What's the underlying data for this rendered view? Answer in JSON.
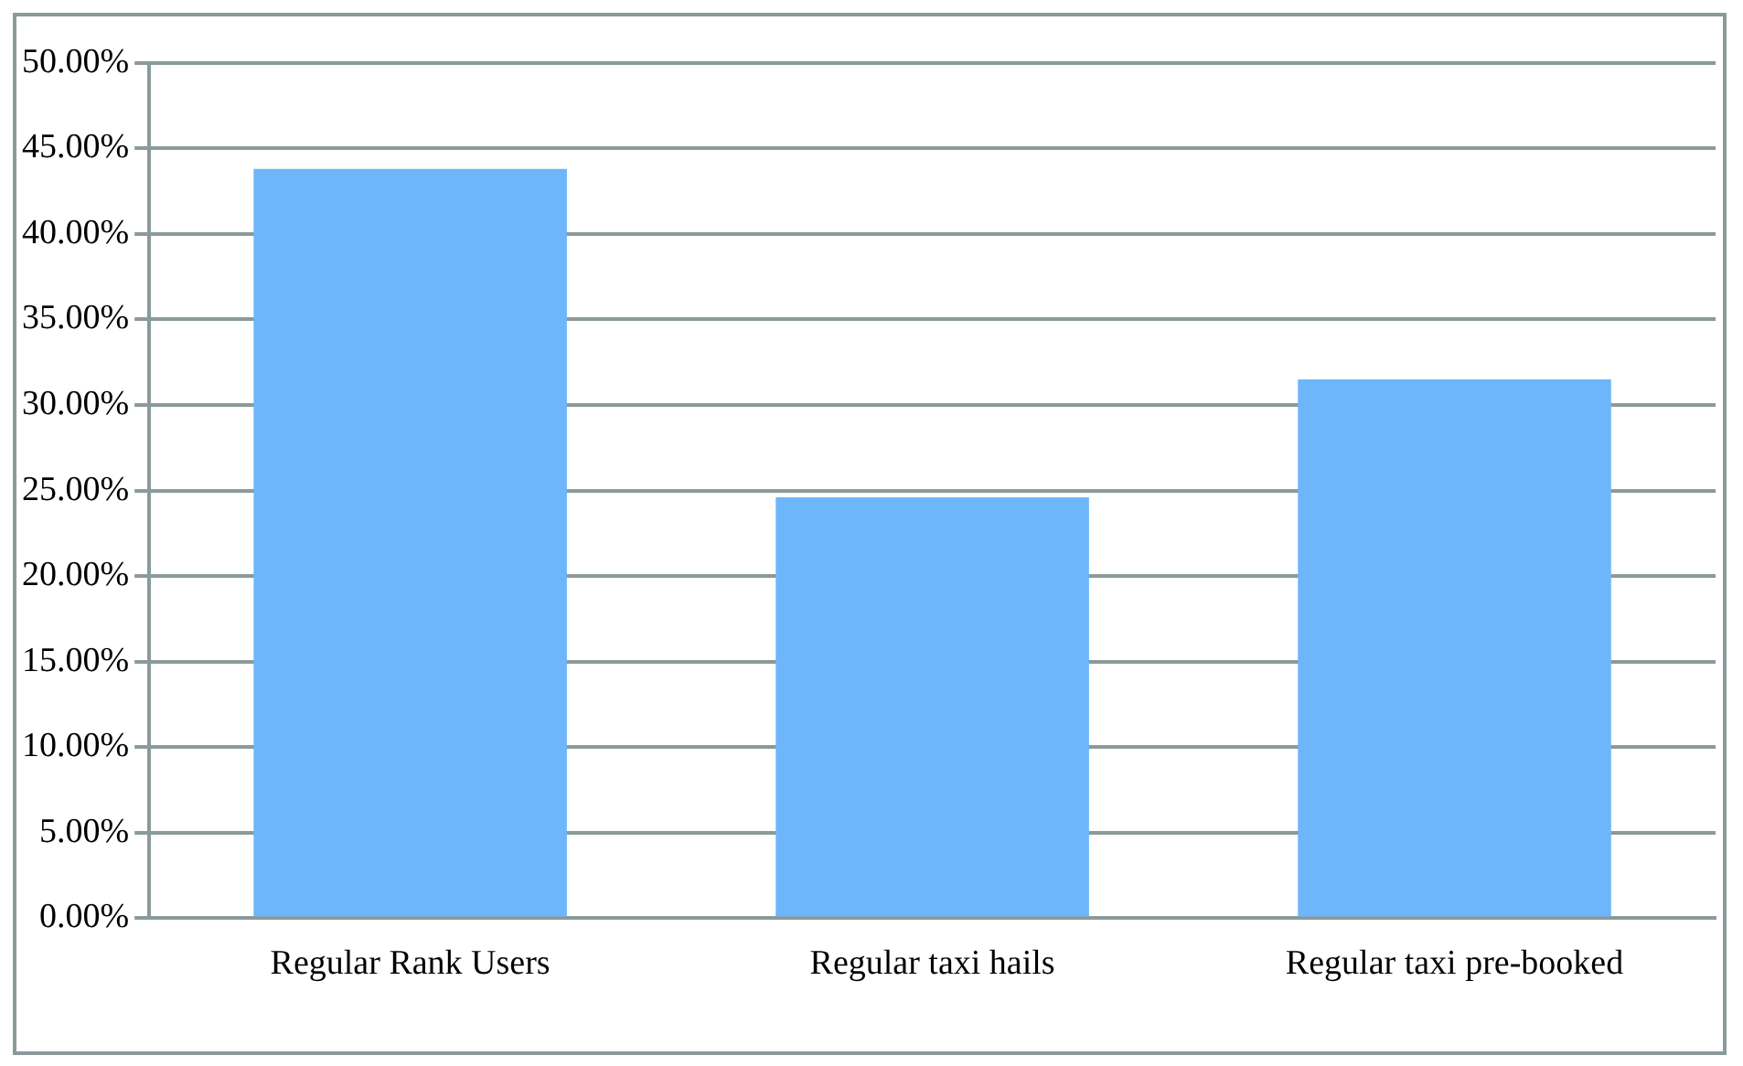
{
  "chart_data": {
    "type": "bar",
    "categories": [
      "Regular Rank Users",
      "Regular taxi hails",
      "Regular taxi pre-booked"
    ],
    "values": [
      43.8,
      24.6,
      31.5
    ],
    "color": "#6db6fb",
    "ylim": [
      0,
      50
    ],
    "yticks": [
      {
        "value": 0,
        "label": "0.00%"
      },
      {
        "value": 5,
        "label": "5.00%"
      },
      {
        "value": 10,
        "label": "10.00%"
      },
      {
        "value": 15,
        "label": "15.00%"
      },
      {
        "value": 20,
        "label": "20.00%"
      },
      {
        "value": 25,
        "label": "25.00%"
      },
      {
        "value": 30,
        "label": "30.00%"
      },
      {
        "value": 35,
        "label": "35.00%"
      },
      {
        "value": 40,
        "label": "40.00%"
      },
      {
        "value": 45,
        "label": "45.00%"
      },
      {
        "value": 50,
        "label": "50.00%"
      }
    ],
    "grid": "y",
    "legend": false
  }
}
